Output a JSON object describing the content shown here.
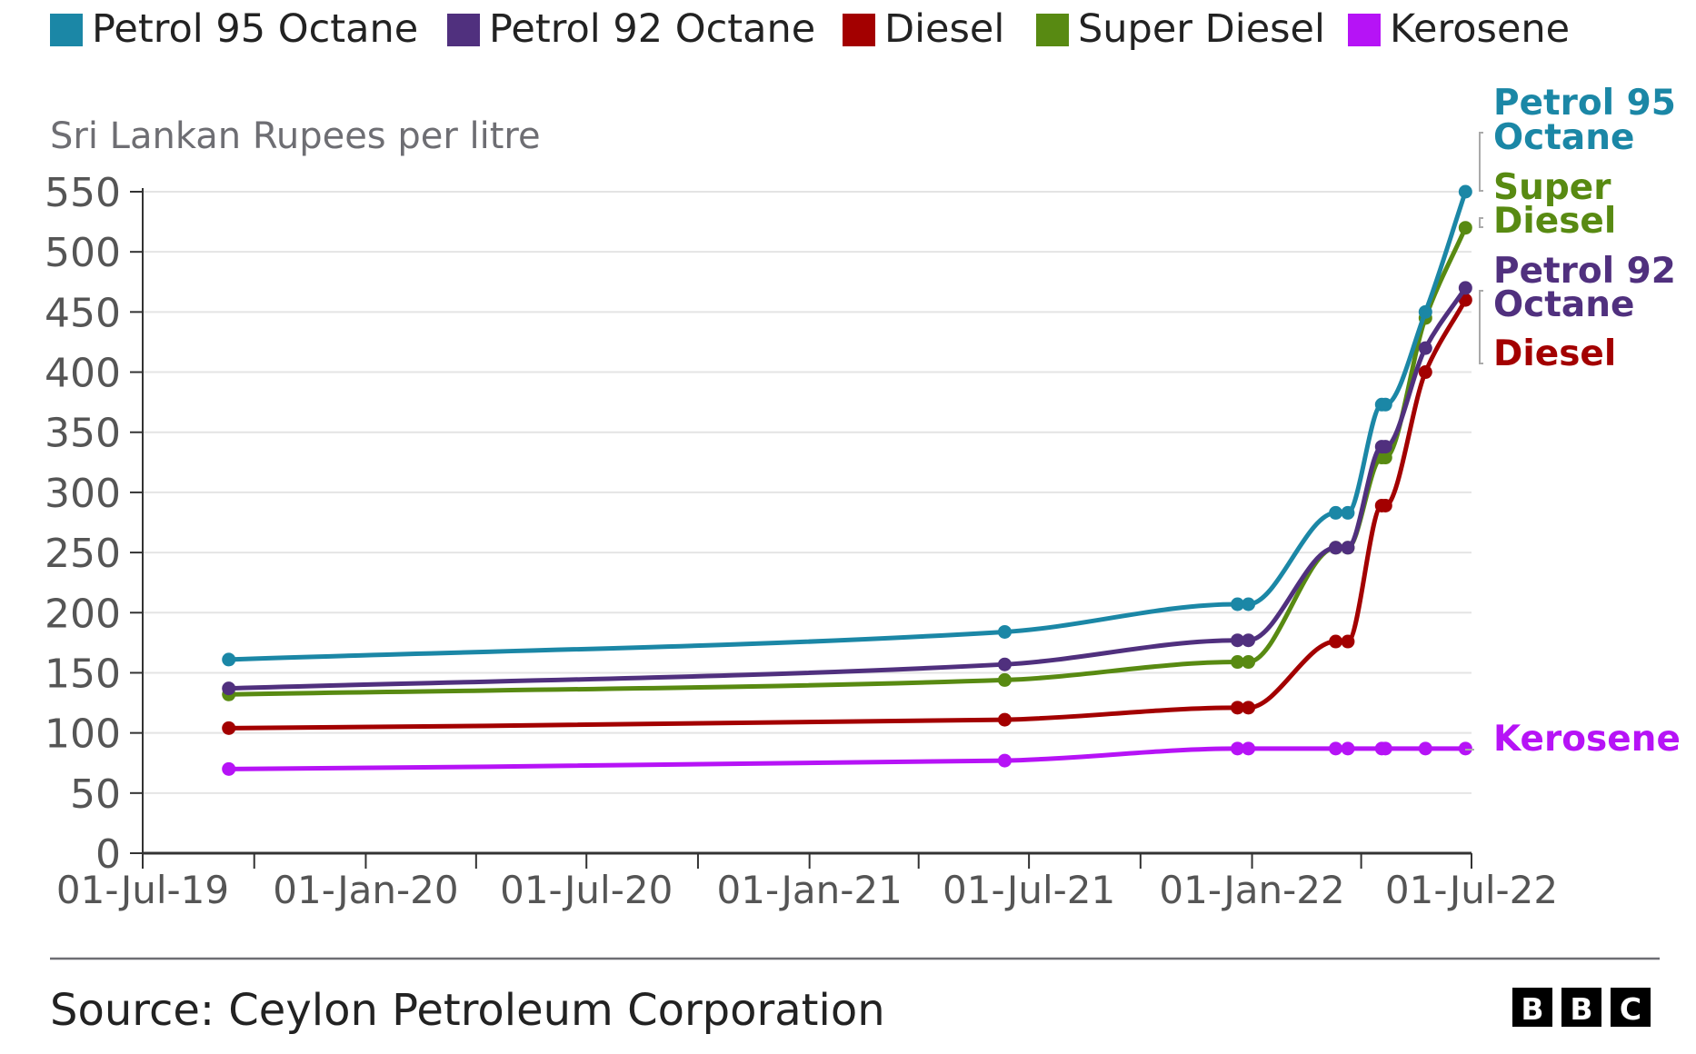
{
  "chart_data": {
    "type": "line",
    "ylabel": "Sri Lankan Rupees per litre",
    "ylim": [
      0,
      550
    ],
    "yticks": [
      "0",
      "50",
      "100",
      "150",
      "200",
      "250",
      "300",
      "350",
      "400",
      "450",
      "500",
      "550"
    ],
    "xlim": [
      "2019-07-01",
      "2022-07-01"
    ],
    "xtick_labels": [
      {
        "date": "2019-07-01",
        "label": "01-Jul-19"
      },
      {
        "date": "2020-01-01",
        "label": "01-Jan-20"
      },
      {
        "date": "2020-07-01",
        "label": "01-Jul-20"
      },
      {
        "date": "2021-01-01",
        "label": "01-Jan-21"
      },
      {
        "date": "2021-07-01",
        "label": "01-Jul-21"
      },
      {
        "date": "2022-01-01",
        "label": "01-Jan-22"
      },
      {
        "date": "2022-07-01",
        "label": "01-Jul-22"
      }
    ],
    "minor_ticks": [
      "2019-10-01",
      "2020-04-01",
      "2020-10-01",
      "2021-04-01",
      "2021-10-01",
      "2022-04-01"
    ],
    "grid": true,
    "legend_position": "top",
    "x": [
      "2019-09-10",
      "2021-06-11",
      "2021-12-20",
      "2021-12-29",
      "2022-03-11",
      "2022-03-21",
      "2022-04-18",
      "2022-04-21",
      "2022-05-24",
      "2022-06-26"
    ],
    "series": [
      {
        "name": "Petrol 95 Octane",
        "end_label": [
          "Petrol 95",
          "Octane"
        ],
        "color": "#1b87a6",
        "values": [
          161,
          184,
          207,
          207,
          283,
          283,
          373,
          373,
          450,
          550
        ]
      },
      {
        "name": "Petrol 92 Octane",
        "end_label": [
          "Petrol 92",
          "Octane"
        ],
        "color": "#50307e",
        "values": [
          137,
          157,
          177,
          177,
          254,
          254,
          338,
          338,
          420,
          470
        ]
      },
      {
        "name": "Diesel",
        "end_label": [
          "Diesel"
        ],
        "color": "#a30000",
        "values": [
          104,
          111,
          121,
          121,
          176,
          176,
          289,
          289,
          400,
          460
        ]
      },
      {
        "name": "Super Diesel",
        "end_label": [
          "Super",
          "Diesel"
        ],
        "color": "#588a12",
        "values": [
          132,
          144,
          159,
          159,
          254,
          254,
          329,
          329,
          445,
          520
        ]
      },
      {
        "name": "Kerosene",
        "end_label": [
          "Kerosene"
        ],
        "color": "#b613f6",
        "values": [
          70,
          77,
          87,
          87,
          87,
          87,
          87,
          87,
          87,
          87
        ]
      }
    ]
  },
  "footer": {
    "source": "Source: Ceylon Petroleum Corporation",
    "logo": "BBC"
  }
}
